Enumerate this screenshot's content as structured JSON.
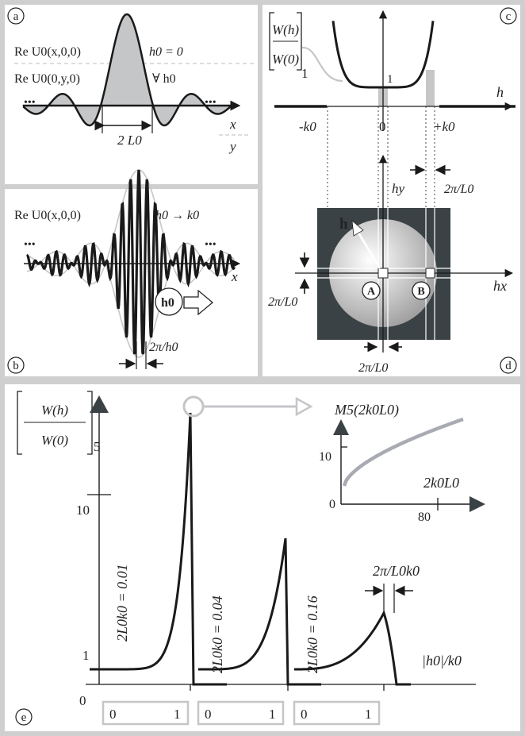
{
  "panel_a": {
    "letter": "a",
    "label_x": "Re U0(x,0,0)",
    "label_y": "Re U0(0,y,0)",
    "h_zero": "h0 = 0",
    "forall": "∀ h0",
    "width": "2 L0",
    "axis_x": "x",
    "axis_y": "y",
    "dots": "•••"
  },
  "panel_b": {
    "letter": "b",
    "label": "Re U0(x,0,0)",
    "h_to_k": "h0 → k0",
    "vector": "h0",
    "axis_x": "x",
    "spacing": "2π/h0",
    "dots": "•••"
  },
  "panel_c": {
    "letter": "c",
    "ylabel_num": "W(h)",
    "ylabel_den": "W(0)",
    "one_left": "1",
    "one_center": "1",
    "axis_h": "h",
    "tick_minus": "-k0",
    "tick_zero": "0",
    "tick_plus": "+k0"
  },
  "panel_d": {
    "letter": "d",
    "hy": "hy",
    "hx": "hx",
    "h_vec": "h",
    "point_a": "A",
    "point_b": "B",
    "width_top": "2π/L0",
    "width_left": "2π/L0",
    "width_bottom": "2π/L0"
  },
  "panel_e": {
    "letter": "e",
    "ylabel_num": "W(h)",
    "ylabel_den": "W(0)",
    "ytick_5": "5",
    "ytick_10": "10",
    "ytick_1": "1",
    "ytick_0": "0",
    "curve_labels": [
      "2L0k0 = 0.01",
      "2L0k0 = 0.04",
      "2L0k0 = 0.16"
    ],
    "width_label": "2π/L0k0",
    "xaxis": "|h0|/k0",
    "xticks": [
      [
        "0",
        "1"
      ],
      [
        "0",
        "1"
      ],
      [
        "0",
        "1"
      ]
    ],
    "inset_ylabel": "M5(2k0L0)",
    "inset_xlabel": "2k0L0",
    "inset_ytick": "10",
    "inset_xtick": "80",
    "inset_origin": "0"
  },
  "colors": {
    "frame": "#cfcfcf",
    "dark": "#1a1a1a",
    "square": "#3a4245",
    "gray_fill": "#c4c6c8",
    "inset_curve": "#a9abb3"
  }
}
